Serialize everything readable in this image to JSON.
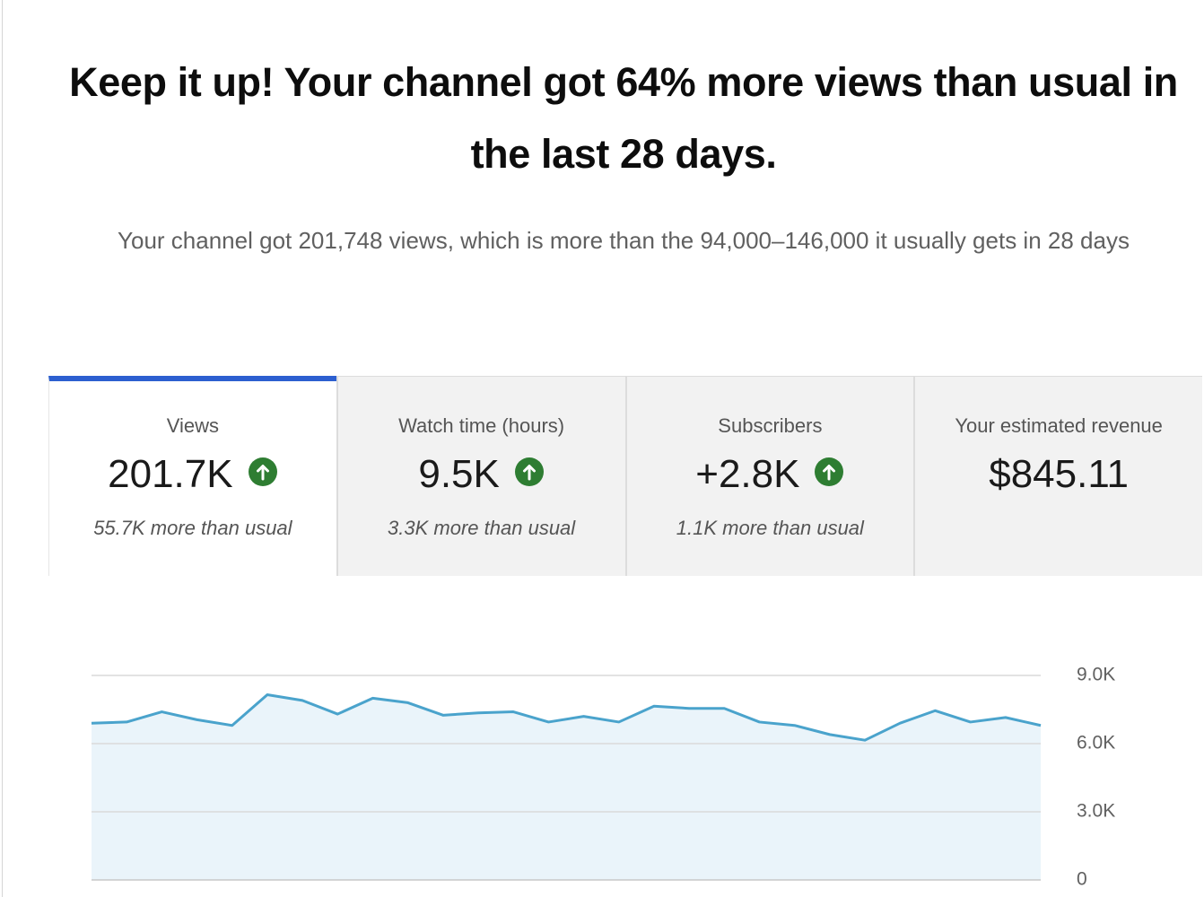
{
  "header": {
    "title": "Keep it up! Your channel got 64% more views than usual in the last 28 days.",
    "subtitle": "Your channel got 201,748 views, which is more than the 94,000–146,000 it usually gets in 28 days"
  },
  "tabs": [
    {
      "label": "Views",
      "value": "201.7K",
      "note": "55.7K more than usual",
      "icon": "up",
      "selected": true
    },
    {
      "label": "Watch time (hours)",
      "value": "9.5K",
      "note": "3.3K more than usual",
      "icon": "up"
    },
    {
      "label": "Subscribers",
      "value": "+2.8K",
      "note": "1.1K more than usual",
      "icon": "up"
    },
    {
      "label": "Your estimated revenue",
      "value": "$845.11"
    }
  ],
  "chart_data": {
    "type": "area",
    "categories": [
      null,
      null,
      null,
      null,
      null,
      null,
      null,
      null,
      null,
      null,
      null,
      null,
      null,
      null,
      null,
      null,
      null,
      null,
      null,
      null,
      null,
      null,
      null,
      null,
      null,
      null,
      null,
      null
    ],
    "values": [
      6900,
      6950,
      7400,
      7050,
      6800,
      8150,
      7900,
      7300,
      8000,
      7800,
      7250,
      7350,
      7400,
      6950,
      7200,
      6950,
      7650,
      7550,
      7550,
      6950,
      6800,
      6400,
      6150,
      6900,
      7450,
      6950,
      7150,
      6800
    ],
    "color": "#4aa3cc",
    "fill_color": "#eaf4fa",
    "ylim": [
      0,
      9000
    ],
    "yticks": [
      0,
      {
        "value": 3000,
        "label": "3.0K"
      },
      {
        "value": 6000,
        "label": "6.0K"
      },
      {
        "value": 9000,
        "label": "9.0K"
      }
    ],
    "grid": true
  }
}
